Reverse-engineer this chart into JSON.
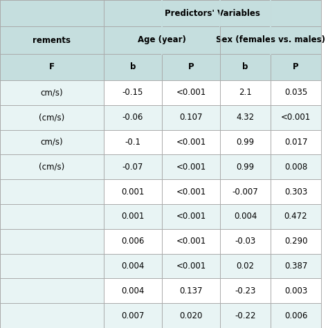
{
  "col0_labels": [
    "rements\nF",
    "cm/s)",
    "(cm/s)",
    "cm/s)",
    "(cm/s)",
    "",
    "",
    "",
    "",
    "",
    ""
  ],
  "rows": [
    [
      "cm/s)",
      "-0.15",
      "<0.001",
      "2.1",
      "0.035"
    ],
    [
      "(cm/s)",
      "-0.06",
      "0.107",
      "4.32",
      "<0.001"
    ],
    [
      "cm/s)",
      "-0.1",
      "<0.001",
      "0.99",
      "0.017"
    ],
    [
      "(cm/s)",
      "-0.07",
      "<0.001",
      "0.99",
      "0.008"
    ],
    [
      "",
      "0.001",
      "<0.001",
      "-0.007",
      "0.303"
    ],
    [
      "",
      "0.001",
      "<0.001",
      "0.004",
      "0.472"
    ],
    [
      "",
      "0.006",
      "<0.001",
      "-0.03",
      "0.290"
    ],
    [
      "",
      "0.004",
      "<0.001",
      "0.02",
      "0.387"
    ],
    [
      "",
      "0.004",
      "0.137",
      "-0.23",
      "0.003"
    ],
    [
      "",
      "0.007",
      "0.020",
      "-0.22",
      "0.006"
    ]
  ],
  "header_bg": "#c5dede",
  "row_bg_white": "#ffffff",
  "row_bg_teal": "#e8f4f4",
  "border_color": "#aaaaaa",
  "text_color": "#000000",
  "fig_bg": "#ffffff",
  "title": "Predictors' Variables",
  "age_label": "Age (year)",
  "sex_label": "Sex (females vs. males)",
  "col_b1": "b",
  "col_p1": "P",
  "col_b2": "b",
  "col_p2": "P",
  "h1_label": "rements",
  "h2_label": "F",
  "font_size_header": 8.5,
  "font_size_data": 8.5
}
